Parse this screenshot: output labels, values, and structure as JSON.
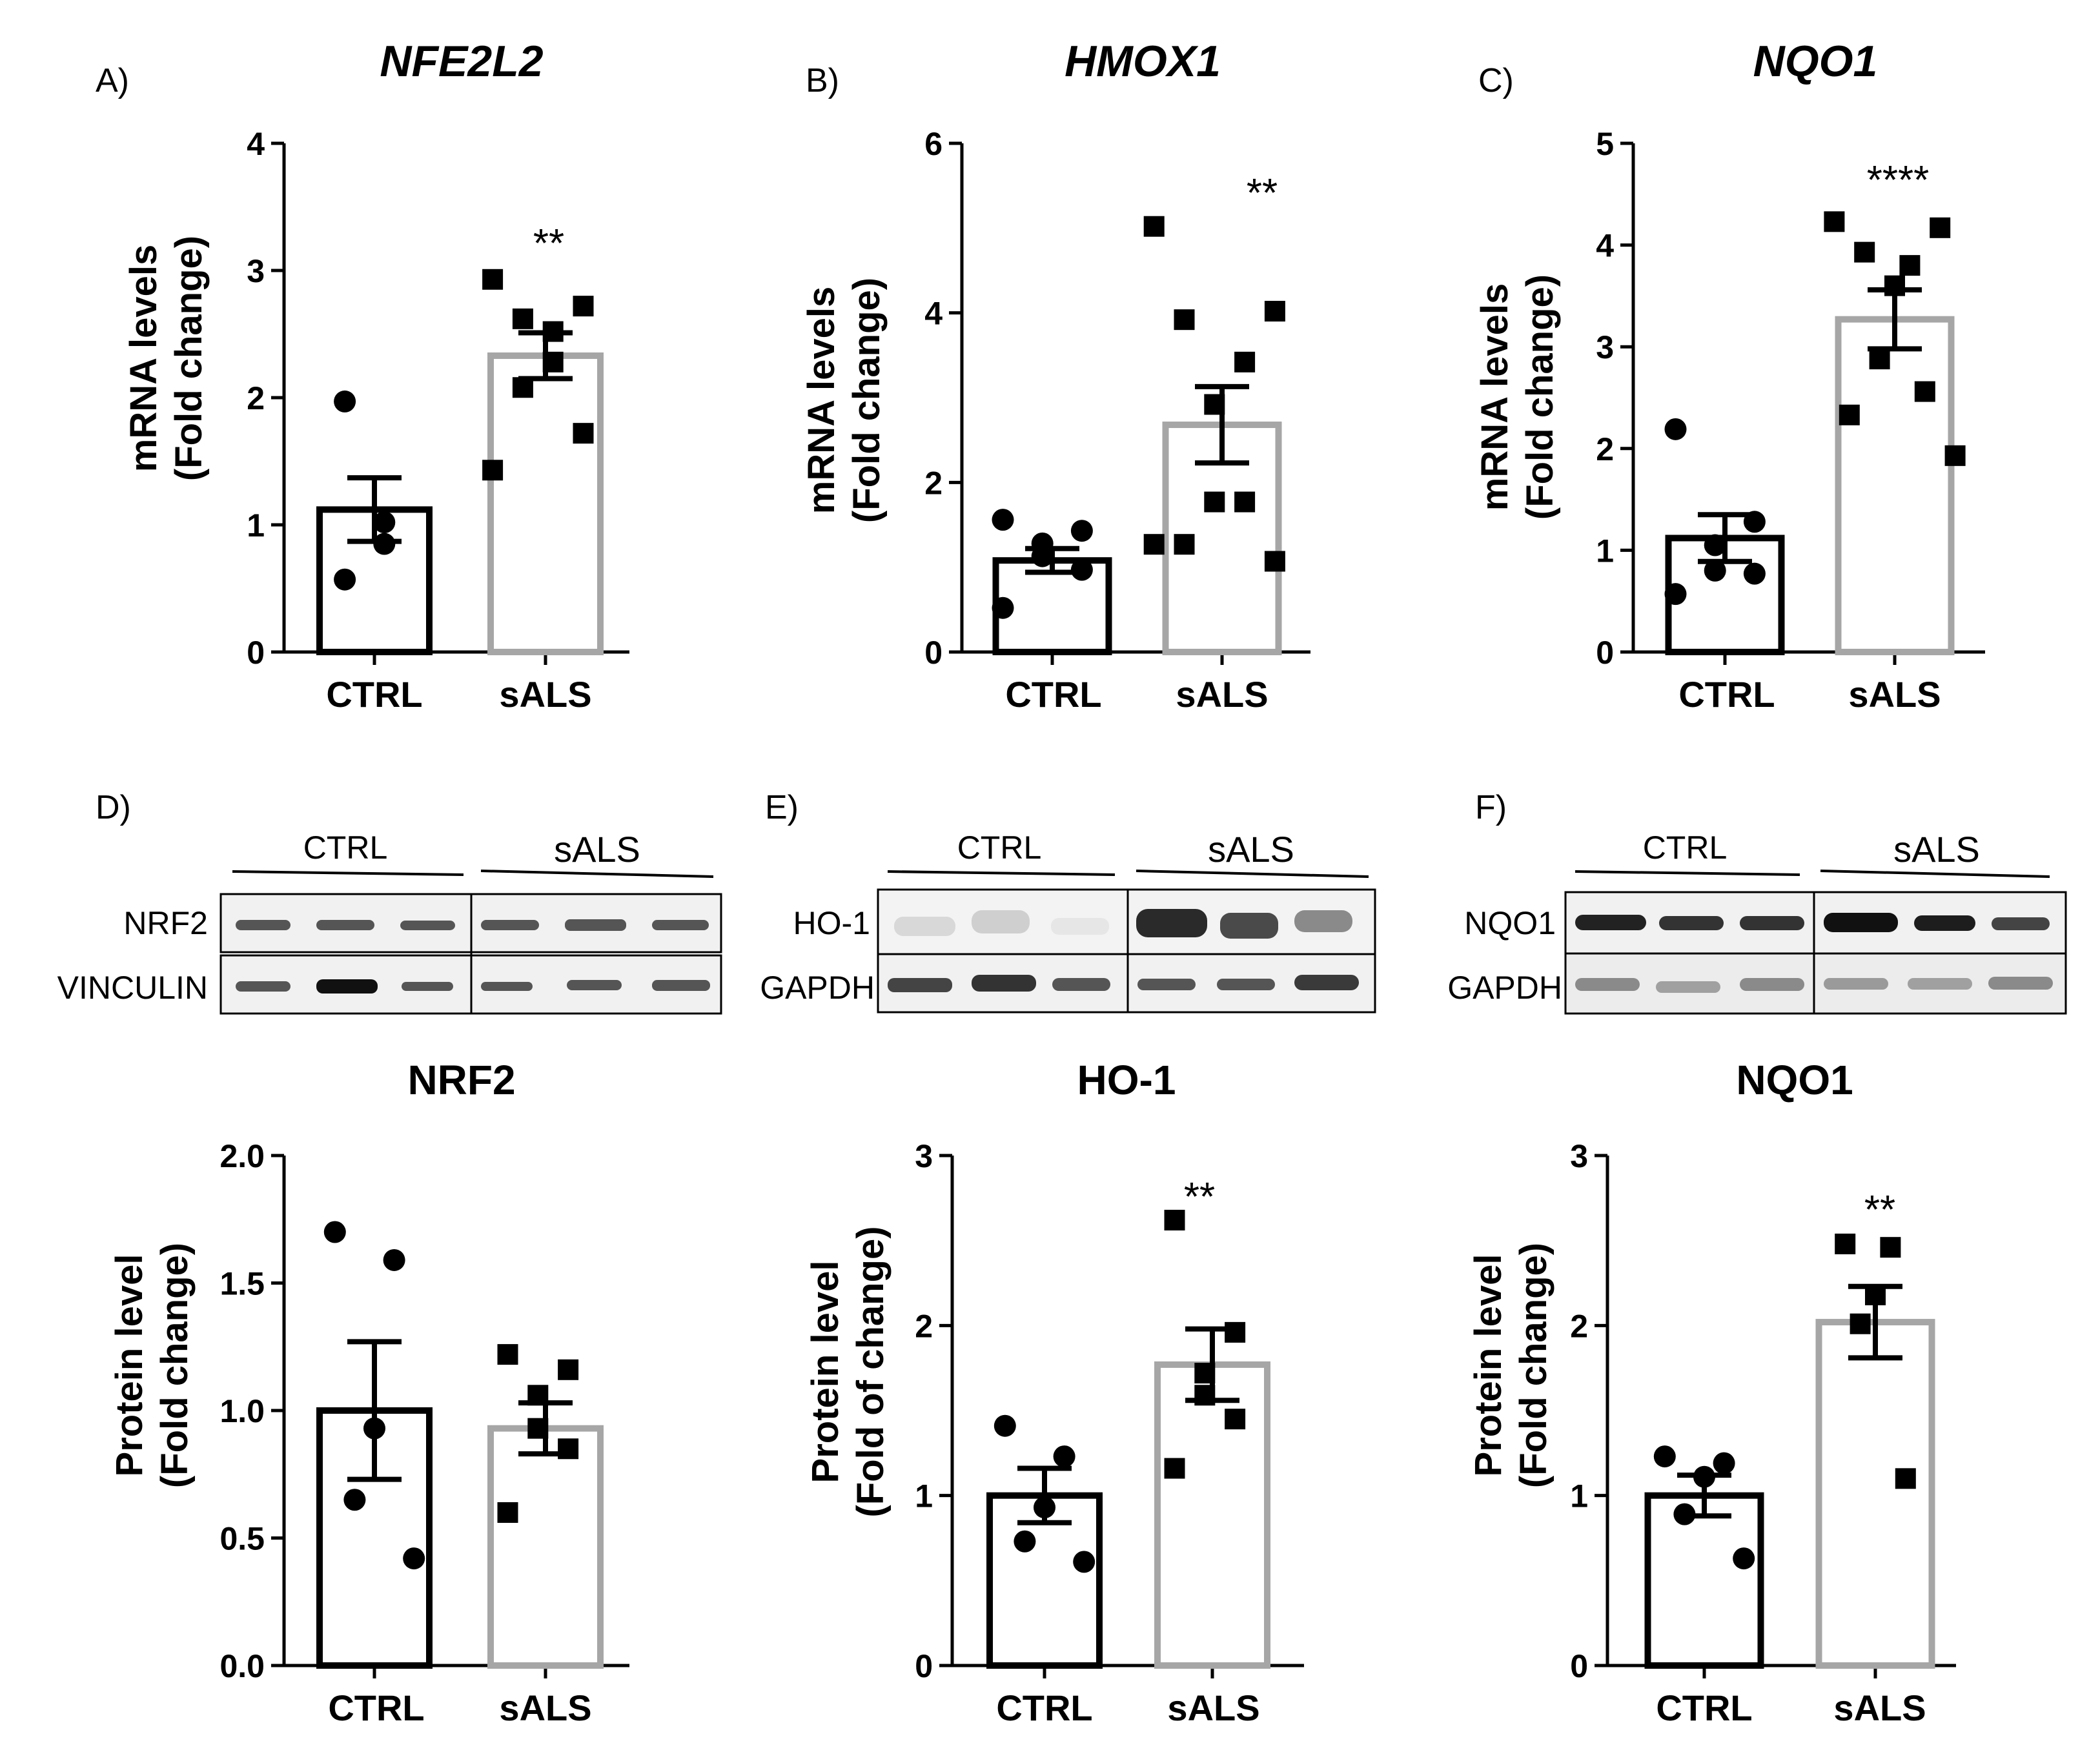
{
  "panels": [
    {
      "label": "A)",
      "title": "NFE2L2",
      "title_italic": true,
      "ylabel": [
        "mRNA levels",
        "(Fold change)"
      ],
      "chart_data": {
        "type": "bar",
        "categories": [
          "CTRL",
          "sALS"
        ],
        "ylim": [
          0,
          4
        ],
        "ticks": [
          0,
          1,
          2,
          3,
          4
        ],
        "tick_labels": [
          "0",
          "1",
          "2",
          "3",
          "4"
        ],
        "means": [
          1.12,
          2.33
        ],
        "sem": [
          0.25,
          0.18
        ],
        "points": [
          [
            1.97,
            1.02,
            0.85,
            0.57
          ],
          [
            2.93,
            2.72,
            2.62,
            2.52,
            2.28,
            2.08,
            1.72,
            1.43
          ]
        ],
        "significance": "**"
      }
    },
    {
      "label": "B)",
      "title": "HMOX1",
      "title_italic": true,
      "ylabel": [
        "mRNA levels",
        "(Fold change)"
      ],
      "chart_data": {
        "type": "bar",
        "categories": [
          "CTRL",
          "sALS"
        ],
        "ylim": [
          0,
          6
        ],
        "ticks": [
          0,
          2,
          4,
          6
        ],
        "tick_labels": [
          "0",
          "2",
          "4",
          "6"
        ],
        "means": [
          1.08,
          2.68
        ],
        "sem": [
          0.14,
          0.45
        ],
        "points": [
          [
            1.56,
            1.43,
            1.28,
            1.13,
            0.97,
            0.52
          ],
          [
            5.02,
            4.02,
            3.92,
            3.42,
            2.92,
            1.77,
            1.77,
            1.27,
            1.07,
            1.27
          ]
        ],
        "significance": "**"
      }
    },
    {
      "label": "C)",
      "title": "NQO1",
      "title_italic": true,
      "ylabel": [
        "mRNA levels",
        "(Fold change)"
      ],
      "chart_data": {
        "type": "bar",
        "categories": [
          "CTRL",
          "sALS"
        ],
        "ylim": [
          0,
          5
        ],
        "ticks": [
          0,
          1,
          2,
          3,
          4,
          5
        ],
        "tick_labels": [
          "0",
          "1",
          "2",
          "3",
          "4",
          "5"
        ],
        "means": [
          1.12,
          3.27
        ],
        "sem": [
          0.23,
          0.29
        ],
        "points": [
          [
            2.19,
            1.28,
            1.05,
            0.8,
            0.77,
            0.57
          ],
          [
            4.23,
            4.17,
            3.93,
            3.8,
            3.6,
            2.88,
            2.56,
            2.33,
            1.93
          ]
        ],
        "significance": "****"
      }
    },
    {
      "label": "D)",
      "title": "NRF2",
      "title_italic": false,
      "ylabel": [
        "Protein level",
        "(Fold change)"
      ],
      "blot": {
        "group1": "CTRL",
        "group2": "sALS",
        "row1": "NRF2",
        "row2": "VINCULIN"
      },
      "chart_data": {
        "type": "bar",
        "categories": [
          "CTRL",
          "sALS"
        ],
        "ylim": [
          0,
          2
        ],
        "ticks": [
          0,
          0.5,
          1,
          1.5,
          2
        ],
        "tick_labels": [
          "0.0",
          "0.5",
          "1.0",
          "1.5",
          "2.0"
        ],
        "means": [
          1.0,
          0.93
        ],
        "sem": [
          0.27,
          0.1
        ],
        "points": [
          [
            1.7,
            1.59,
            0.93,
            0.65,
            0.42
          ],
          [
            1.22,
            1.16,
            1.06,
            0.93,
            0.85,
            0.6
          ]
        ],
        "significance": ""
      }
    },
    {
      "label": "E)",
      "title": "HO-1",
      "title_italic": false,
      "ylabel": [
        "Protein level",
        "(Fold of change)"
      ],
      "blot": {
        "group1": "CTRL",
        "group2": "sALS",
        "row1": "HO-1",
        "row2": "GAPDH"
      },
      "chart_data": {
        "type": "bar",
        "categories": [
          "CTRL",
          "sALS"
        ],
        "ylim": [
          0,
          3
        ],
        "ticks": [
          0,
          1,
          2,
          3
        ],
        "tick_labels": [
          "0",
          "1",
          "2",
          "3"
        ],
        "means": [
          1.0,
          1.77
        ],
        "sem": [
          0.16,
          0.21
        ],
        "points": [
          [
            1.41,
            1.23,
            0.93,
            0.73,
            0.61
          ],
          [
            2.62,
            1.96,
            1.72,
            1.59,
            1.45,
            1.16
          ]
        ],
        "significance": "**"
      }
    },
    {
      "label": "F)",
      "title": "NQO1",
      "title_italic": false,
      "ylabel": [
        "Protein level",
        "(Fold change)"
      ],
      "blot": {
        "group1": "CTRL",
        "group2": "sALS",
        "row1": "NQO1",
        "row2": "GAPDH"
      },
      "chart_data": {
        "type": "bar",
        "categories": [
          "CTRL",
          "sALS"
        ],
        "ylim": [
          0,
          3
        ],
        "ticks": [
          0,
          1,
          2,
          3
        ],
        "tick_labels": [
          "0",
          "1",
          "2",
          "3"
        ],
        "means": [
          1.0,
          2.02
        ],
        "sem": [
          0.12,
          0.21
        ],
        "points": [
          [
            1.23,
            1.19,
            1.11,
            0.89,
            0.63
          ],
          [
            2.48,
            2.46,
            2.18,
            2.01,
            1.1
          ]
        ],
        "significance": "**"
      }
    }
  ],
  "colors": {
    "ctrl_bar": "#000000",
    "sals_bar": "#a6a6a6",
    "axis": "#000000",
    "background": "#ffffff"
  }
}
